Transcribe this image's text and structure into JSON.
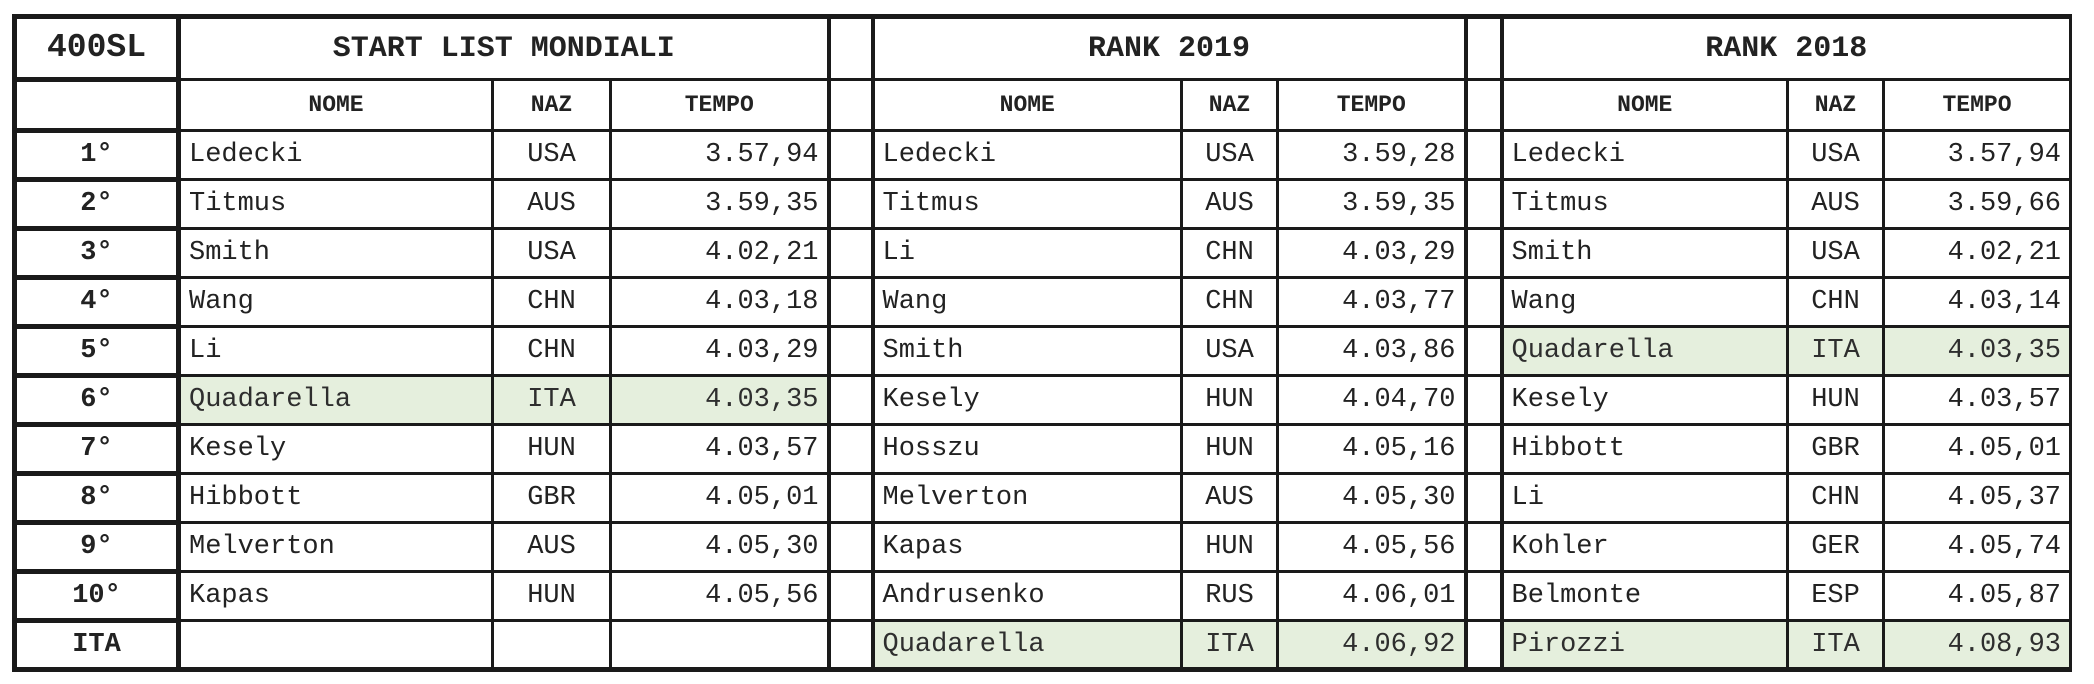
{
  "event": "400SL",
  "sections": [
    {
      "title": "START LIST MONDIALI"
    },
    {
      "title": "RANK 2019"
    },
    {
      "title": "RANK 2018"
    }
  ],
  "headers": {
    "nome": "NOME",
    "naz": "NAZ",
    "tempo": "TEMPO"
  },
  "highlight_color": "#e5efdd",
  "rows": [
    {
      "pos": "1°",
      "start": {
        "nome": "Ledecki",
        "naz": "USA",
        "tempo": "3.57,94"
      },
      "rank2019": {
        "nome": "Ledecki",
        "naz": "USA",
        "tempo": "3.59,28"
      },
      "rank2018": {
        "nome": "Ledecki",
        "naz": "USA",
        "tempo": "3.57,94"
      }
    },
    {
      "pos": "2°",
      "start": {
        "nome": "Titmus",
        "naz": "AUS",
        "tempo": "3.59,35"
      },
      "rank2019": {
        "nome": "Titmus",
        "naz": "AUS",
        "tempo": "3.59,35"
      },
      "rank2018": {
        "nome": "Titmus",
        "naz": "AUS",
        "tempo": "3.59,66"
      }
    },
    {
      "pos": "3°",
      "start": {
        "nome": "Smith",
        "naz": "USA",
        "tempo": "4.02,21"
      },
      "rank2019": {
        "nome": "Li",
        "naz": "CHN",
        "tempo": "4.03,29"
      },
      "rank2018": {
        "nome": "Smith",
        "naz": "USA",
        "tempo": "4.02,21"
      }
    },
    {
      "pos": "4°",
      "start": {
        "nome": "Wang",
        "naz": "CHN",
        "tempo": "4.03,18"
      },
      "rank2019": {
        "nome": "Wang",
        "naz": "CHN",
        "tempo": "4.03,77"
      },
      "rank2018": {
        "nome": "Wang",
        "naz": "CHN",
        "tempo": "4.03,14"
      }
    },
    {
      "pos": "5°",
      "start": {
        "nome": "Li",
        "naz": "CHN",
        "tempo": "4.03,29"
      },
      "rank2019": {
        "nome": "Smith",
        "naz": "USA",
        "tempo": "4.03,86"
      },
      "rank2018": {
        "nome": "Quadarella",
        "naz": "ITA",
        "tempo": "4.03,35",
        "highlight": true
      }
    },
    {
      "pos": "6°",
      "start": {
        "nome": "Quadarella",
        "naz": "ITA",
        "tempo": "4.03,35",
        "highlight": true
      },
      "rank2019": {
        "nome": "Kesely",
        "naz": "HUN",
        "tempo": "4.04,70"
      },
      "rank2018": {
        "nome": "Kesely",
        "naz": "HUN",
        "tempo": "4.03,57"
      }
    },
    {
      "pos": "7°",
      "start": {
        "nome": "Kesely",
        "naz": "HUN",
        "tempo": "4.03,57"
      },
      "rank2019": {
        "nome": "Hosszu",
        "naz": "HUN",
        "tempo": "4.05,16"
      },
      "rank2018": {
        "nome": "Hibbott",
        "naz": "GBR",
        "tempo": "4.05,01"
      }
    },
    {
      "pos": "8°",
      "start": {
        "nome": "Hibbott",
        "naz": "GBR",
        "tempo": "4.05,01"
      },
      "rank2019": {
        "nome": "Melverton",
        "naz": "AUS",
        "tempo": "4.05,30"
      },
      "rank2018": {
        "nome": "Li",
        "naz": "CHN",
        "tempo": "4.05,37"
      }
    },
    {
      "pos": "9°",
      "start": {
        "nome": "Melverton",
        "naz": "AUS",
        "tempo": "4.05,30"
      },
      "rank2019": {
        "nome": "Kapas",
        "naz": "HUN",
        "tempo": "4.05,56"
      },
      "rank2018": {
        "nome": "Kohler",
        "naz": "GER",
        "tempo": "4.05,74"
      }
    },
    {
      "pos": "10°",
      "start": {
        "nome": "Kapas",
        "naz": "HUN",
        "tempo": "4.05,56"
      },
      "rank2019": {
        "nome": "Andrusenko",
        "naz": "RUS",
        "tempo": "4.06,01"
      },
      "rank2018": {
        "nome": "Belmonte",
        "naz": "ESP",
        "tempo": "4.05,87"
      }
    },
    {
      "pos": "ITA",
      "start": {
        "nome": "",
        "naz": "",
        "tempo": ""
      },
      "rank2019": {
        "nome": "Quadarella",
        "naz": "ITA",
        "tempo": "4.06,92",
        "highlight": true
      },
      "rank2018": {
        "nome": "Pirozzi",
        "naz": "ITA",
        "tempo": "4.08,93",
        "highlight": true
      }
    }
  ]
}
